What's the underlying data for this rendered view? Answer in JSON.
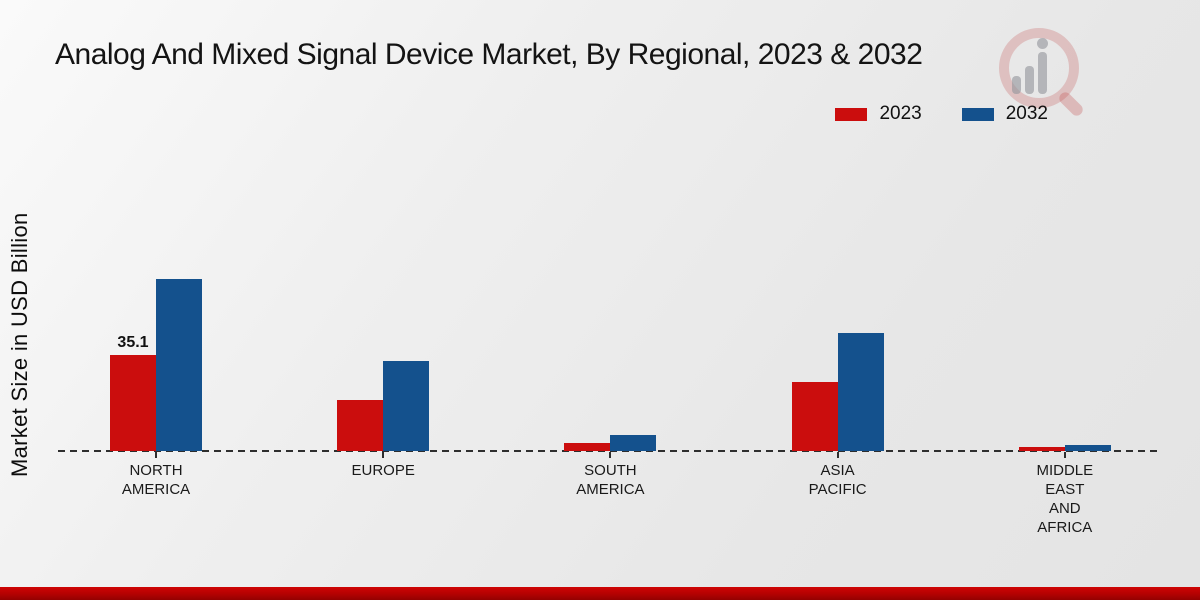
{
  "page": {
    "title": "Analog And Mixed Signal Device Market, By Regional, 2023 & 2032",
    "watermark_icon": "magnifier-bar-chart-logo",
    "footer_accent_color": "#b30202"
  },
  "colors": {
    "series_2023": "#cb0d0d",
    "series_2032": "#14518d",
    "axis": "#2e2e2e",
    "background_light": "#fafafa",
    "background_dark": "#e4e4e4"
  },
  "chart_data": {
    "type": "bar",
    "title": "Analog And Mixed Signal Device Market, By Regional, 2023 & 2032",
    "xlabel": "",
    "ylabel": "Market Size in USD Billion",
    "categories": [
      "NORTH AMERICA",
      "EUROPE",
      "SOUTH AMERICA",
      "ASIA PACIFIC",
      "MIDDLE EAST AND AFRICA"
    ],
    "category_lines": [
      [
        "NORTH",
        "AMERICA"
      ],
      [
        "EUROPE"
      ],
      [
        "SOUTH",
        "AMERICA"
      ],
      [
        "ASIA",
        "PACIFIC"
      ],
      [
        "MIDDLE",
        "EAST",
        "AND",
        "AFRICA"
      ]
    ],
    "series": [
      {
        "name": "2023",
        "color": "#cb0d0d",
        "values": [
          35.1,
          18.6,
          2.9,
          25.2,
          1.5
        ],
        "data_labels": [
          "35.1",
          "",
          "",
          "",
          ""
        ]
      },
      {
        "name": "2032",
        "color": "#14518d",
        "values": [
          63.0,
          32.9,
          5.9,
          43.1,
          2.2
        ],
        "data_labels": [
          "",
          "",
          "",
          "",
          ""
        ]
      }
    ],
    "ylim": [
      0,
      70
    ],
    "grid": false,
    "legend_position": "top-right",
    "x_axis_style": "dashed"
  }
}
